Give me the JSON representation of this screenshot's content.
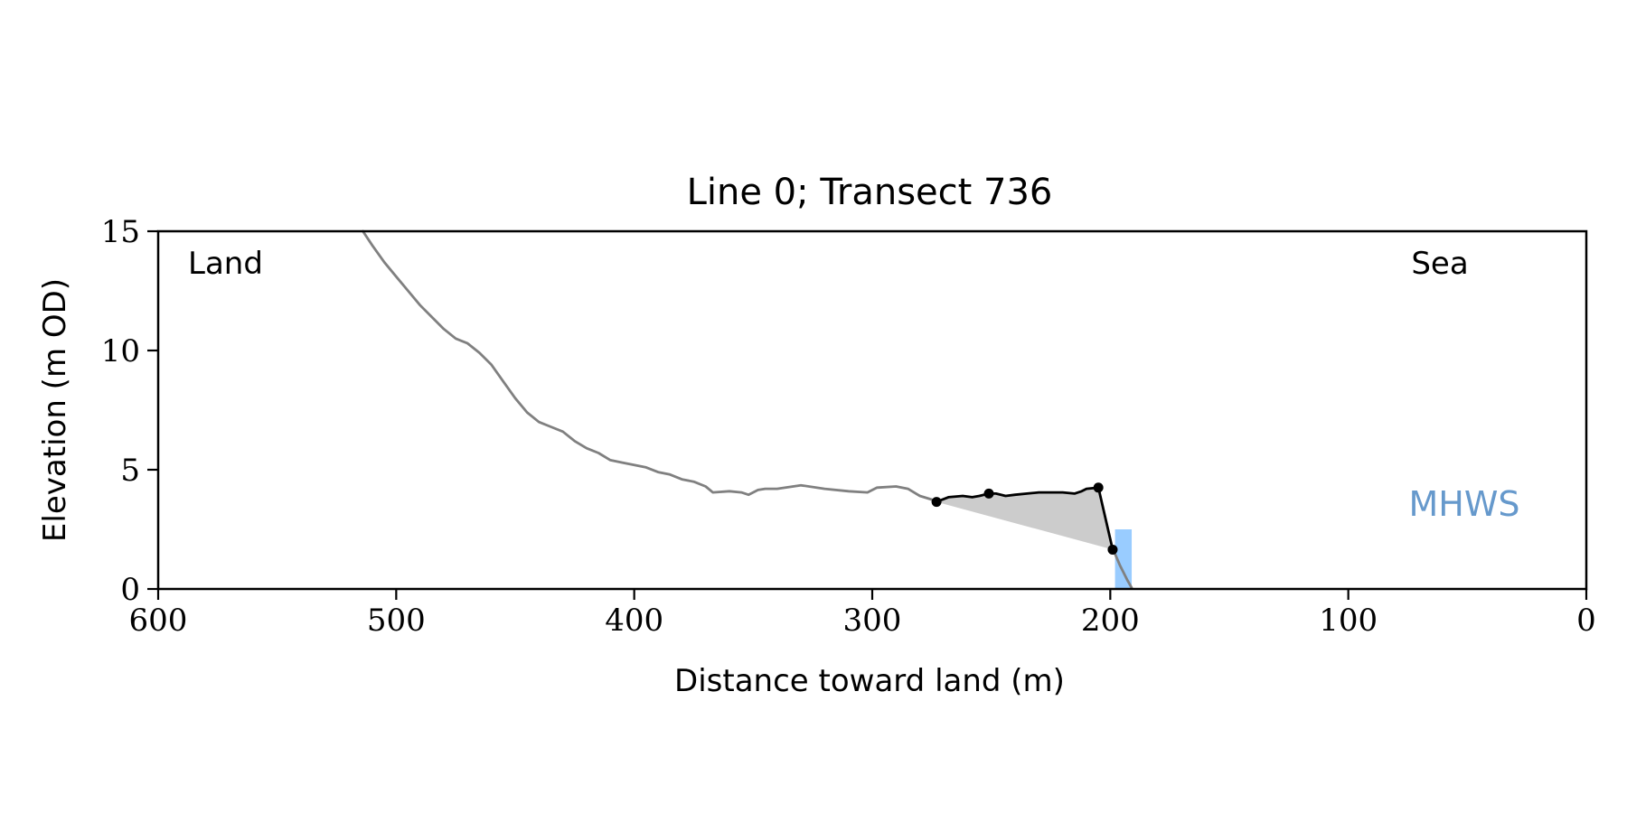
{
  "chart_data": {
    "type": "line",
    "title": "Line 0; Transect 736",
    "xlabel": "Distance toward land (m)",
    "ylabel": "Elevation (m OD)",
    "xlim": [
      600,
      0
    ],
    "ylim": [
      0,
      15
    ],
    "x_ticks": [
      600,
      500,
      400,
      300,
      200,
      100,
      0
    ],
    "y_ticks": [
      0,
      5,
      10,
      15
    ],
    "grid": false,
    "annotations": {
      "land": "Land",
      "sea": "Sea",
      "mhws": "MHWS"
    },
    "colors": {
      "profile": "#808080",
      "segment": "#000000",
      "fill": "#cccccc",
      "mhws_bar": "#99ccff",
      "mhws_text": "#6699cc"
    },
    "profile": {
      "x": [
        514,
        510,
        505,
        500,
        495,
        490,
        485,
        480,
        475,
        470,
        465,
        460,
        455,
        450,
        445,
        440,
        435,
        430,
        425,
        420,
        415,
        410,
        405,
        400,
        395,
        390,
        385,
        380,
        375,
        370,
        367,
        360,
        355,
        352,
        348,
        345,
        340,
        330,
        320,
        310,
        302,
        298,
        290,
        285,
        280,
        275,
        273
      ],
      "y": [
        15.0,
        14.4,
        13.7,
        13.1,
        12.5,
        11.9,
        11.4,
        10.9,
        10.5,
        10.3,
        9.9,
        9.4,
        8.7,
        8.0,
        7.4,
        7.0,
        6.8,
        6.6,
        6.2,
        5.9,
        5.7,
        5.4,
        5.3,
        5.2,
        5.1,
        4.9,
        4.8,
        4.6,
        4.5,
        4.3,
        4.05,
        4.1,
        4.05,
        3.95,
        4.15,
        4.2,
        4.2,
        4.35,
        4.2,
        4.1,
        4.05,
        4.25,
        4.3,
        4.2,
        3.9,
        3.75,
        3.65
      ]
    },
    "profile_toe": {
      "x": [
        199,
        196,
        193,
        191
      ],
      "y": [
        1.7,
        1.0,
        0.4,
        0.05
      ]
    },
    "segment": {
      "x": [
        273,
        268,
        262,
        258,
        255,
        251,
        248,
        244,
        240,
        235,
        230,
        225,
        220,
        215,
        212,
        210,
        205,
        199
      ],
      "y": [
        3.65,
        3.85,
        3.9,
        3.85,
        3.9,
        4.0,
        4.0,
        3.9,
        3.95,
        4.0,
        4.05,
        4.05,
        4.05,
        4.0,
        4.1,
        4.2,
        4.25,
        1.65
      ]
    },
    "markers": {
      "x": [
        273,
        251,
        205,
        199
      ],
      "y": [
        3.65,
        4.0,
        4.25,
        1.65
      ]
    },
    "mhws_bar": {
      "x_range": [
        198,
        191
      ],
      "y_range": [
        0,
        2.5
      ]
    }
  }
}
